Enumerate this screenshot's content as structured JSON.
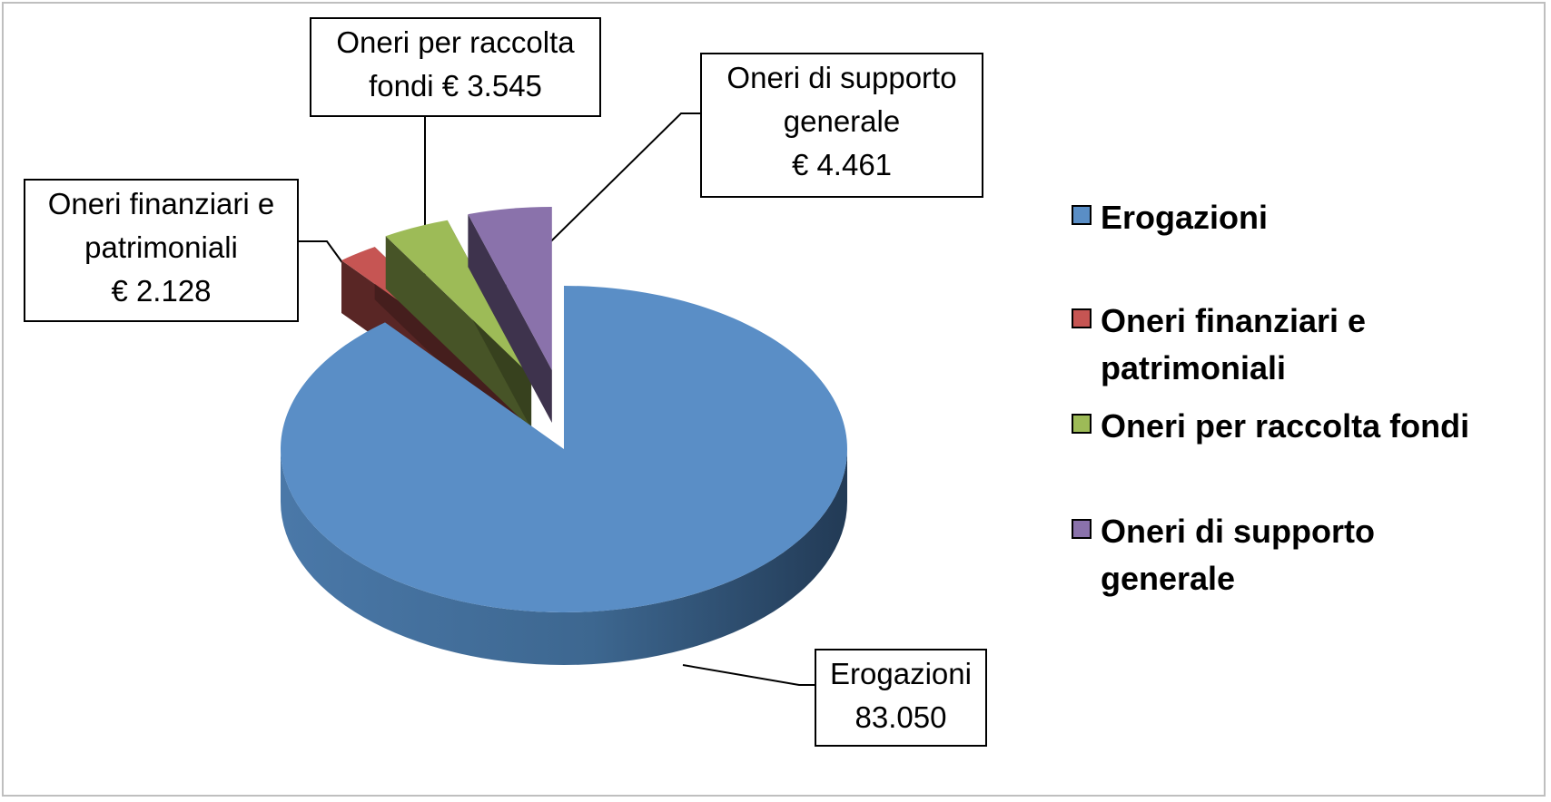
{
  "chart_data": {
    "type": "pie",
    "categories": [
      "Erogazioni",
      "Oneri finanziari e patrimoniali",
      "Oneri per raccolta fondi",
      "Oneri di supporto generale"
    ],
    "values": [
      83050,
      2128,
      3545,
      4461
    ],
    "colors": [
      "#5a8ec6",
      "#c65553",
      "#9dbb57",
      "#8a72ab"
    ],
    "data_labels": [
      {
        "line1": "Erogazioni",
        "line2": "83.050",
        "line3": ""
      },
      {
        "line1": "Oneri finanziari e",
        "line2": "patrimoniali",
        "line3": "€ 2.128"
      },
      {
        "line1": "Oneri per raccolta",
        "line2": "fondi € 3.545",
        "line3": ""
      },
      {
        "line1": "Oneri di supporto",
        "line2": "generale",
        "line3": "€ 4.461"
      }
    ],
    "legend": [
      {
        "line1": "Erogazioni",
        "line2": ""
      },
      {
        "line1": "Oneri finanziari e",
        "line2": "patrimoniali"
      },
      {
        "line1": "Oneri per raccolta fondi",
        "line2": ""
      },
      {
        "line1": "Oneri di supporto",
        "line2": "generale"
      }
    ],
    "legend_position": "right",
    "style": "3d-exploded-pie"
  }
}
